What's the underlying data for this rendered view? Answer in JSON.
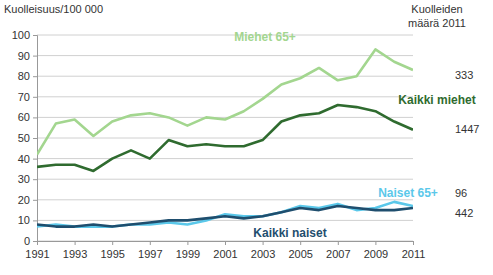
{
  "chart_data": {
    "type": "line",
    "y_label": "Kuolleisuus/100 000",
    "annotation": "Kuolleiden määrä 2011",
    "x": [
      1991,
      1992,
      1993,
      1994,
      1995,
      1996,
      1997,
      1998,
      1999,
      2000,
      2001,
      2002,
      2003,
      2004,
      2005,
      2006,
      2007,
      2008,
      2009,
      2010,
      2011
    ],
    "xlim": [
      1991,
      2011
    ],
    "xticks": [
      1991,
      1993,
      1995,
      1997,
      1999,
      2001,
      2003,
      2005,
      2007,
      2009,
      2011
    ],
    "ylim": [
      0,
      100
    ],
    "yticks": [
      0,
      10,
      20,
      30,
      40,
      50,
      60,
      70,
      80,
      90,
      100
    ],
    "grid": true,
    "series": [
      {
        "name": "Miehet 65+",
        "color": "#a3d68f",
        "deaths_2011": 333,
        "values": [
          42,
          57,
          59,
          51,
          58,
          61,
          62,
          60,
          56,
          60,
          59,
          63,
          69,
          76,
          79,
          84,
          78,
          80,
          93,
          87,
          83
        ]
      },
      {
        "name": "Kaikki miehet",
        "color": "#2f6b2f",
        "deaths_2011": 1447,
        "values": [
          36,
          37,
          37,
          34,
          40,
          44,
          40,
          49,
          46,
          47,
          46,
          46,
          49,
          58,
          61,
          62,
          66,
          65,
          63,
          58,
          54
        ]
      },
      {
        "name": "Naiset 65+",
        "color": "#5bc8ea",
        "deaths_2011": 96,
        "values": [
          7,
          8,
          7,
          7,
          7,
          8,
          8,
          9,
          8,
          10,
          13,
          12,
          12,
          14,
          17,
          16,
          18,
          15,
          16,
          19,
          17
        ]
      },
      {
        "name": "Kaikki naiset",
        "color": "#1f4e6e",
        "deaths_2011": 442,
        "values": [
          8,
          7,
          7,
          8,
          7,
          8,
          9,
          10,
          10,
          11,
          12,
          11,
          12,
          14,
          16,
          15,
          17,
          16,
          15,
          15,
          16
        ]
      }
    ]
  }
}
